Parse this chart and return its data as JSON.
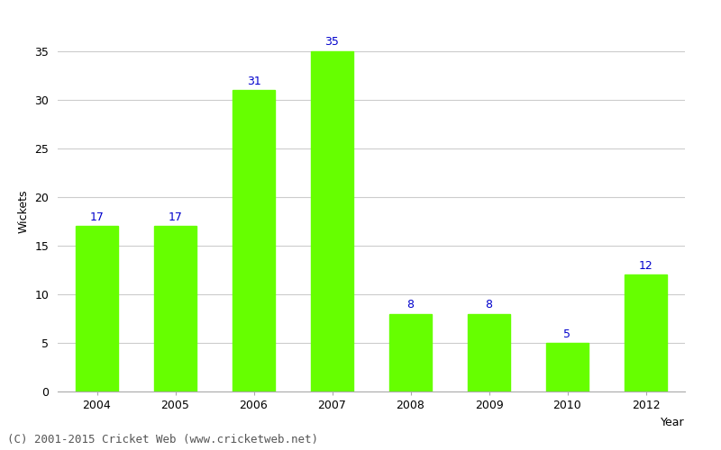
{
  "years": [
    "2004",
    "2005",
    "2006",
    "2007",
    "2008",
    "2009",
    "2010",
    "2012"
  ],
  "wickets": [
    17,
    17,
    31,
    35,
    8,
    8,
    5,
    12
  ],
  "bar_color": "#66ff00",
  "bar_edge_color": "#66ff00",
  "label_color": "#0000cc",
  "xlabel": "Year",
  "ylabel": "Wickets",
  "ylim": [
    0,
    37
  ],
  "yticks": [
    0,
    5,
    10,
    15,
    20,
    25,
    30,
    35
  ],
  "footer": "(C) 2001-2015 Cricket Web (www.cricketweb.net)",
  "label_fontsize": 9,
  "axis_fontsize": 9,
  "footer_fontsize": 9,
  "background_color": "#ffffff",
  "grid_color": "#cccccc",
  "bar_width": 0.55
}
